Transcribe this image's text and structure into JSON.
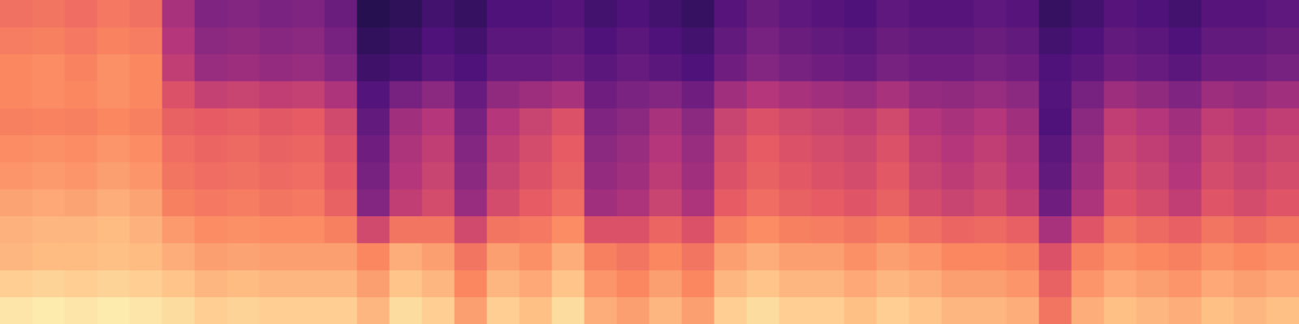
{
  "chart_data": {
    "type": "heatmap",
    "grid": false,
    "tick_labels": false,
    "color_range": [
      0,
      100
    ],
    "cells": [
      [
        69,
        72,
        75,
        75,
        73,
        76,
        78,
        81,
        84,
        85,
        90,
        95
      ],
      [
        70,
        73,
        76,
        76,
        74,
        77,
        79,
        82,
        85,
        86,
        91,
        96
      ],
      [
        68,
        71,
        74,
        75,
        73,
        76,
        78,
        81,
        85,
        86,
        90,
        95
      ],
      [
        71,
        74,
        77,
        77,
        75,
        78,
        80,
        83,
        86,
        87,
        91,
        96
      ],
      [
        69,
        72,
        75,
        75,
        73,
        76,
        78,
        81,
        84,
        86,
        90,
        95
      ],
      [
        47,
        50,
        53,
        60,
        65,
        68,
        70,
        73,
        79,
        83,
        88,
        93
      ],
      [
        37,
        40,
        43,
        54,
        63,
        66,
        68,
        71,
        76,
        80,
        85,
        90
      ],
      [
        38,
        41,
        44,
        55,
        64,
        67,
        69,
        72,
        77,
        81,
        86,
        91
      ],
      [
        36,
        39,
        42,
        53,
        62,
        65,
        67,
        70,
        76,
        80,
        85,
        90
      ],
      [
        37,
        40,
        43,
        54,
        63,
        66,
        68,
        71,
        76,
        80,
        85,
        90
      ],
      [
        32,
        35,
        38,
        48,
        57,
        60,
        62,
        65,
        73,
        80,
        85,
        90
      ],
      [
        15,
        18,
        21,
        26,
        30,
        33,
        35,
        38,
        57,
        75,
        80,
        85
      ],
      [
        17,
        20,
        23,
        35,
        45,
        48,
        50,
        53,
        70,
        83,
        88,
        93
      ],
      [
        22,
        25,
        28,
        40,
        50,
        53,
        55,
        58,
        70,
        80,
        85,
        90
      ],
      [
        19,
        22,
        25,
        31,
        35,
        38,
        40,
        43,
        57,
        70,
        75,
        80
      ],
      [
        25,
        28,
        31,
        41,
        50,
        53,
        55,
        58,
        70,
        80,
        85,
        90
      ],
      [
        25,
        28,
        31,
        44,
        55,
        58,
        60,
        63,
        71,
        77,
        82,
        87
      ],
      [
        27,
        30,
        33,
        47,
        60,
        63,
        65,
        68,
        76,
        83,
        88,
        93
      ],
      [
        22,
        25,
        28,
        33,
        37,
        40,
        42,
        45,
        60,
        73,
        78,
        83
      ],
      [
        25,
        28,
        31,
        36,
        40,
        43,
        45,
        48,
        60,
        70,
        75,
        80
      ],
      [
        22,
        25,
        28,
        38,
        47,
        50,
        52,
        55,
        66,
        75,
        80,
        85
      ],
      [
        19,
        22,
        25,
        33,
        40,
        43,
        45,
        48,
        60,
        70,
        75,
        80
      ],
      [
        27,
        30,
        33,
        45,
        55,
        58,
        60,
        63,
        72,
        80,
        85,
        90
      ],
      [
        32,
        35,
        38,
        50,
        60,
        63,
        65,
        68,
        76,
        83,
        88,
        93
      ],
      [
        29,
        32,
        35,
        47,
        57,
        60,
        62,
        65,
        73,
        80,
        85,
        90
      ],
      [
        27,
        30,
        33,
        45,
        55,
        58,
        60,
        63,
        72,
        80,
        85,
        90
      ],
      [
        25,
        28,
        31,
        43,
        53,
        56,
        58,
        61,
        70,
        77,
        82,
        87
      ],
      [
        29,
        32,
        35,
        47,
        57,
        60,
        62,
        65,
        73,
        80,
        85,
        90
      ],
      [
        27,
        30,
        33,
        42,
        50,
        53,
        55,
        58,
        69,
        78,
        83,
        88
      ],
      [
        27,
        30,
        33,
        41,
        47,
        50,
        52,
        55,
        66,
        75,
        80,
        85
      ],
      [
        29,
        32,
        35,
        43,
        50,
        53,
        55,
        58,
        67,
        75,
        80,
        85
      ],
      [
        27,
        30,
        33,
        40,
        45,
        48,
        50,
        53,
        64,
        73,
        78,
        83
      ],
      [
        19,
        22,
        25,
        26,
        25,
        28,
        30,
        33,
        47,
        60,
        65,
        70
      ],
      [
        22,
        25,
        28,
        35,
        40,
        43,
        45,
        48,
        61,
        73,
        78,
        83
      ],
      [
        27,
        30,
        33,
        44,
        53,
        56,
        58,
        61,
        70,
        77,
        82,
        87
      ],
      [
        25,
        28,
        31,
        41,
        50,
        53,
        55,
        58,
        67,
        75,
        80,
        85
      ],
      [
        22,
        25,
        28,
        37,
        45,
        48,
        50,
        53,
        64,
        73,
        78,
        83
      ],
      [
        27,
        30,
        33,
        44,
        53,
        56,
        58,
        61,
        70,
        77,
        82,
        87
      ],
      [
        27,
        30,
        33,
        42,
        50,
        53,
        55,
        58,
        67,
        75,
        80,
        85
      ],
      [
        29,
        32,
        35,
        45,
        53,
        56,
        58,
        61,
        70,
        77,
        82,
        87
      ]
    ]
  }
}
